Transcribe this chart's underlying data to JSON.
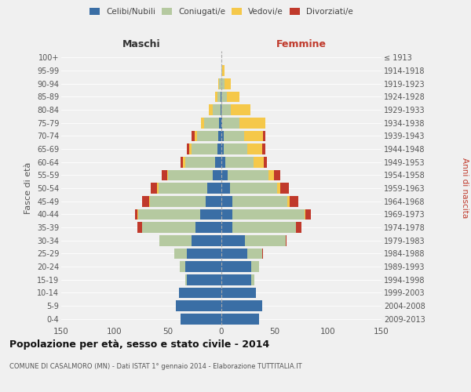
{
  "age_groups": [
    "0-4",
    "5-9",
    "10-14",
    "15-19",
    "20-24",
    "25-29",
    "30-34",
    "35-39",
    "40-44",
    "45-49",
    "50-54",
    "55-59",
    "60-64",
    "65-69",
    "70-74",
    "75-79",
    "80-84",
    "85-89",
    "90-94",
    "95-99",
    "100+"
  ],
  "birth_years": [
    "2009-2013",
    "2004-2008",
    "1999-2003",
    "1994-1998",
    "1989-1993",
    "1984-1988",
    "1979-1983",
    "1974-1978",
    "1969-1973",
    "1964-1968",
    "1959-1963",
    "1954-1958",
    "1949-1953",
    "1944-1948",
    "1939-1943",
    "1934-1938",
    "1929-1933",
    "1924-1928",
    "1919-1923",
    "1914-1918",
    "≤ 1913"
  ],
  "male_celibi": [
    38,
    43,
    40,
    32,
    34,
    32,
    28,
    24,
    20,
    15,
    13,
    8,
    6,
    4,
    3,
    2,
    1,
    1,
    0,
    0,
    0
  ],
  "male_coniugati": [
    0,
    0,
    0,
    2,
    5,
    12,
    30,
    50,
    58,
    52,
    46,
    42,
    28,
    24,
    20,
    14,
    7,
    3,
    2,
    0,
    0
  ],
  "male_vedovi": [
    0,
    0,
    0,
    0,
    0,
    0,
    0,
    0,
    1,
    1,
    1,
    1,
    2,
    2,
    2,
    3,
    4,
    2,
    1,
    0,
    0
  ],
  "male_divorziati": [
    0,
    0,
    0,
    0,
    0,
    0,
    0,
    5,
    2,
    6,
    6,
    5,
    2,
    2,
    3,
    0,
    0,
    0,
    0,
    0,
    0
  ],
  "female_nubili": [
    35,
    38,
    32,
    28,
    28,
    24,
    22,
    10,
    10,
    10,
    8,
    6,
    4,
    2,
    2,
    1,
    0,
    0,
    0,
    0,
    0
  ],
  "female_coniugate": [
    0,
    0,
    0,
    3,
    7,
    14,
    38,
    60,
    68,
    52,
    44,
    38,
    26,
    22,
    19,
    16,
    9,
    5,
    3,
    1,
    0
  ],
  "female_vedove": [
    0,
    0,
    0,
    0,
    0,
    0,
    0,
    0,
    1,
    2,
    3,
    5,
    10,
    14,
    18,
    24,
    18,
    12,
    6,
    2,
    0
  ],
  "female_divorziate": [
    0,
    0,
    0,
    0,
    0,
    1,
    1,
    5,
    5,
    8,
    8,
    6,
    3,
    3,
    2,
    0,
    0,
    0,
    0,
    0,
    0
  ],
  "colors": {
    "celibi_nubili": "#3a6ea5",
    "coniugati": "#b5c9a0",
    "vedovi": "#f5c84a",
    "divorziati": "#c0392b"
  },
  "xlim": 150,
  "title": "Popolazione per età, sesso e stato civile - 2014",
  "subtitle": "COMUNE DI CASALMORO (MN) - Dati ISTAT 1° gennaio 2014 - Elaborazione TUTTITALIA.IT",
  "ylabel_left": "Fasce di età",
  "ylabel_right": "Anni di nascita",
  "xlabel_male": "Maschi",
  "xlabel_female": "Femmine",
  "bg_color": "#f0f0f0",
  "bar_height": 0.82
}
